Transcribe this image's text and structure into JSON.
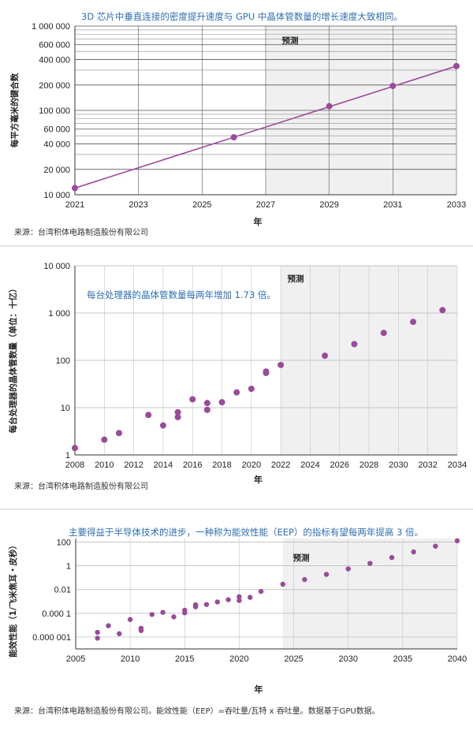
{
  "chart_data": [
    {
      "type": "line",
      "title": "3D 芯片中垂直连接的密度提升速度与 GPU 中晶体管数量的增长速度大致相同。",
      "xlabel": "年",
      "ylabel": "每平方毫米的键合数",
      "forecast_label": "预测",
      "forecast_start": 2027,
      "xlim": [
        2021,
        2033
      ],
      "ylim": [
        10000,
        1000000
      ],
      "x_ticks": [
        2021,
        2023,
        2025,
        2027,
        2029,
        2031,
        2033
      ],
      "x_tick_labels": [
        "2021",
        "2023",
        "2025",
        "2027",
        "2029",
        "2031",
        "2033"
      ],
      "y_ticks": [
        10000,
        20000,
        40000,
        60000,
        100000,
        200000,
        400000,
        600000,
        1000000
      ],
      "y_tick_labels": [
        "10 000",
        "20 000",
        "40 000",
        "60 000",
        "100 000",
        "200 000",
        "400 000",
        "600 000",
        "1 000 000"
      ],
      "y_minor_gridlines": [
        30000,
        50000,
        70000,
        80000,
        90000,
        300000,
        500000,
        700000,
        800000,
        900000
      ],
      "x": [
        2021,
        2026,
        2029,
        2031,
        2033
      ],
      "y": [
        12000,
        48000,
        112000,
        195000,
        335000
      ],
      "color": "#9b4a9b",
      "source": "来源：台湾积体电路制造股份有限公司"
    },
    {
      "type": "scatter",
      "title": "每台处理器的晶体管数量每两年增加 1.73 倍。",
      "xlabel": "年",
      "ylabel": "每台处理器的晶体管数量（单位：十亿）",
      "forecast_label": "预测",
      "forecast_start": 2022,
      "xlim": [
        2008,
        2034
      ],
      "ylim": [
        1,
        10000
      ],
      "x_ticks": [
        2008,
        2010,
        2012,
        2014,
        2016,
        2018,
        2020,
        2022,
        2024,
        2026,
        2028,
        2030,
        2032,
        2034
      ],
      "x_tick_labels": [
        "2008",
        "2010",
        "2012",
        "2014",
        "2016",
        "2018",
        "2020",
        "2022",
        "2024",
        "2026",
        "2028",
        "2030",
        "2032",
        "2034"
      ],
      "y_ticks": [
        1,
        10,
        100,
        1000,
        10000
      ],
      "y_tick_labels": [
        "1",
        "10",
        "100",
        "1 000",
        "10 000"
      ],
      "x": [
        2008,
        2010,
        2011,
        2013,
        2014,
        2015,
        2015,
        2016,
        2017,
        2017,
        2018,
        2019,
        2020,
        2021,
        2021,
        2022,
        2025,
        2027,
        2029,
        2031,
        2033
      ],
      "y": [
        1.4,
        2.1,
        2.9,
        7,
        4.2,
        6.3,
        8,
        15,
        9,
        12.5,
        13,
        21,
        25,
        54,
        58,
        80,
        125,
        220,
        380,
        650,
        1150
      ],
      "color": "#9b4a9b",
      "source": "来源：台湾积体电路制造股份有限公司"
    },
    {
      "type": "scatter",
      "title": "主要得益于半导体技术的进步，一种称为能效性能（EEP）的指标有望每两年提高 3 倍。",
      "xlabel": "年",
      "ylabel": "能效性能（1/飞米焦耳・皮秒）",
      "forecast_label": "预测",
      "forecast_start": 2024,
      "xlim": [
        2005,
        2040
      ],
      "ylim": [
        1e-07,
        200
      ],
      "x_ticks": [
        2005,
        2010,
        2015,
        2020,
        2025,
        2030,
        2035,
        2040
      ],
      "x_tick_labels": [
        "2005",
        "2010",
        "2015",
        "2020",
        "2025",
        "2030",
        "2035",
        "2040"
      ],
      "y_ticks": [
        1e-06,
        0.0001,
        0.01,
        1,
        100
      ],
      "y_tick_labels": [
        "0.000 001",
        "0.000 1",
        "0.01",
        "1",
        "100"
      ],
      "x": [
        2007,
        2007,
        2008,
        2009,
        2010,
        2011,
        2011,
        2012,
        2013,
        2014,
        2015,
        2015,
        2016,
        2016,
        2017,
        2018,
        2019,
        2020,
        2020,
        2021,
        2022,
        2024,
        2026,
        2028,
        2030,
        2032,
        2034,
        2036,
        2038,
        2040
      ],
      "y": [
        8e-07,
        2.5e-06,
        9e-06,
        1.9e-06,
        3e-05,
        3.5e-06,
        5.5e-06,
        8e-05,
        0.00012,
        5e-05,
        0.00011,
        0.00018,
        0.00035,
        0.00052,
        0.00055,
        0.0009,
        0.0014,
        0.0012,
        0.0025,
        0.0022,
        0.007,
        0.028,
        0.07,
        0.19,
        0.55,
        1.6,
        5,
        15,
        45,
        130
      ],
      "color": "#9b4a9b",
      "source": "来源：台湾积体电路制造股份有限公司。能效性能（EEP）=吞吐量/瓦特 x 吞吐量。数据基于GPU数据。"
    }
  ]
}
